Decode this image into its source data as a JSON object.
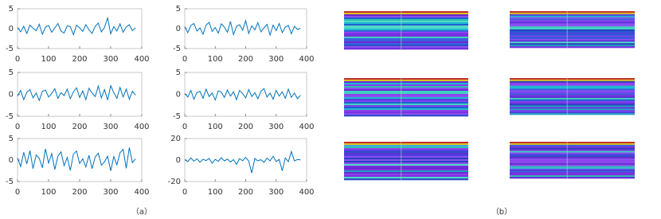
{
  "chart_data": [
    {
      "type": "line",
      "x": [
        0,
        10,
        20,
        30,
        40,
        50,
        60,
        70,
        80,
        90,
        100,
        110,
        120,
        130,
        140,
        150,
        160,
        170,
        180,
        190,
        200,
        210,
        220,
        230,
        240,
        250,
        260,
        270,
        280,
        290,
        300,
        310,
        320,
        330,
        340,
        350,
        360,
        370,
        380
      ],
      "series": [
        {
          "color": "#0072bd",
          "values": [
            0.3,
            -0.8,
            0.6,
            -1.2,
            0.9,
            0.1,
            -0.5,
            1.1,
            -1.4,
            0.4,
            0.8,
            -0.9,
            0.2,
            1.3,
            -0.6,
            -1.1,
            0.7,
            0.5,
            -1.5,
            0.9,
            0.2,
            -0.7,
            1.0,
            -0.3,
            -1.2,
            0.6,
            1.4,
            -0.8,
            0.3,
            2.7,
            -1.3,
            0.5,
            -0.6,
            1.2,
            -0.9,
            0.4,
            1.0,
            -0.5,
            0.2
          ]
        }
      ],
      "xlim": [
        0,
        400
      ],
      "ylim": [
        -5,
        5
      ],
      "xticks": [
        0,
        100,
        200,
        300,
        400
      ],
      "yticks": [
        -5,
        0,
        5
      ]
    },
    {
      "type": "line",
      "x": [
        0,
        10,
        20,
        30,
        40,
        50,
        60,
        70,
        80,
        90,
        100,
        110,
        120,
        130,
        140,
        150,
        160,
        170,
        180,
        190,
        200,
        210,
        220,
        230,
        240,
        250,
        260,
        270,
        280,
        290,
        300,
        310,
        320,
        330,
        340,
        350,
        360,
        370,
        380
      ],
      "series": [
        {
          "color": "#0072bd",
          "values": [
            0.5,
            -1.0,
            0.8,
            1.3,
            -0.6,
            0.2,
            -1.4,
            0.9,
            1.6,
            -0.7,
            0.3,
            -1.1,
            1.2,
            0.4,
            -0.9,
            1.8,
            -1.5,
            0.6,
            1.0,
            -0.4,
            2.0,
            -1.2,
            0.7,
            -0.3,
            1.5,
            -0.8,
            0.2,
            1.1,
            -1.6,
            0.9,
            -0.5,
            1.3,
            -1.0,
            0.4,
            0.8,
            -1.3,
            0.6,
            -0.2,
            0.1
          ]
        }
      ],
      "xlim": [
        0,
        400
      ],
      "ylim": [
        -5,
        5
      ],
      "xticks": [
        0,
        100,
        200,
        300,
        400
      ],
      "yticks": [
        -5,
        0,
        5
      ]
    },
    {
      "type": "line",
      "x": [
        0,
        10,
        20,
        30,
        40,
        50,
        60,
        70,
        80,
        90,
        100,
        110,
        120,
        130,
        140,
        150,
        160,
        170,
        180,
        190,
        200,
        210,
        220,
        230,
        240,
        250,
        260,
        270,
        280,
        290,
        300,
        310,
        320,
        330,
        340,
        350,
        360,
        370,
        380
      ],
      "series": [
        {
          "color": "#0072bd",
          "values": [
            -0.4,
            0.9,
            -1.2,
            0.5,
            1.1,
            -0.8,
            0.3,
            -1.4,
            0.7,
            1.0,
            -0.6,
            0.2,
            1.3,
            -0.9,
            0.4,
            -0.3,
            1.2,
            -1.0,
            0.6,
            1.5,
            -0.7,
            0.8,
            -1.2,
            1.4,
            0.3,
            -0.5,
            1.9,
            -0.8,
            1.1,
            -1.3,
            2.0,
            0.4,
            -0.9,
            1.6,
            -0.6,
            1.2,
            -1.1,
            0.7,
            -0.2
          ]
        }
      ],
      "xlim": [
        0,
        400
      ],
      "ylim": [
        -5,
        5
      ],
      "xticks": [
        0,
        100,
        200,
        300,
        400
      ],
      "yticks": [
        -5,
        0,
        5
      ]
    },
    {
      "type": "line",
      "x": [
        0,
        10,
        20,
        30,
        40,
        50,
        60,
        70,
        80,
        90,
        100,
        110,
        120,
        130,
        140,
        150,
        160,
        170,
        180,
        190,
        200,
        210,
        220,
        230,
        240,
        250,
        260,
        270,
        280,
        290,
        300,
        310,
        320,
        330,
        340,
        350,
        360,
        370,
        380
      ],
      "series": [
        {
          "color": "#0072bd",
          "values": [
            0.2,
            -0.6,
            0.9,
            -1.1,
            0.4,
            0.7,
            -0.9,
            1.2,
            -0.5,
            0.3,
            -1.3,
            0.8,
            0.5,
            -0.7,
            1.0,
            -0.4,
            0.6,
            -1.2,
            0.9,
            0.2,
            -0.8,
            1.1,
            -0.5,
            0.4,
            -1.0,
            0.7,
            1.3,
            -0.6,
            0.3,
            -1.1,
            0.9,
            -0.4,
            0.6,
            -0.9,
            1.2,
            -0.7,
            0.3,
            -1.0,
            -0.2
          ]
        }
      ],
      "xlim": [
        0,
        400
      ],
      "ylim": [
        -5,
        5
      ],
      "xticks": [
        0,
        100,
        200,
        300,
        400
      ],
      "yticks": [
        -5,
        0,
        5
      ]
    },
    {
      "type": "line",
      "x": [
        0,
        10,
        20,
        30,
        40,
        50,
        60,
        70,
        80,
        90,
        100,
        110,
        120,
        130,
        140,
        150,
        160,
        170,
        180,
        190,
        200,
        210,
        220,
        230,
        240,
        250,
        260,
        270,
        280,
        290,
        300,
        310,
        320,
        330,
        340,
        350,
        360,
        370,
        380
      ],
      "series": [
        {
          "color": "#0072bd",
          "values": [
            0.5,
            -1.5,
            1.8,
            -0.9,
            2.2,
            -2.0,
            1.2,
            0.4,
            -1.8,
            2.6,
            -0.7,
            1.5,
            -2.2,
            0.9,
            1.9,
            -1.3,
            0.6,
            -2.4,
            1.4,
            2.1,
            -0.8,
            0.3,
            -1.6,
            1.1,
            -2.0,
            0.7,
            1.6,
            -1.2,
            -0.4,
            0.9,
            -2.5,
            0.8,
            -1.1,
            1.7,
            2.5,
            -1.9,
            2.9,
            -0.6,
            0.3
          ]
        }
      ],
      "xlim": [
        0,
        400
      ],
      "ylim": [
        -5,
        5
      ],
      "xticks": [
        0,
        100,
        200,
        300,
        400
      ],
      "yticks": [
        -5,
        0,
        5
      ]
    },
    {
      "type": "line",
      "x": [
        0,
        10,
        20,
        30,
        40,
        50,
        60,
        70,
        80,
        90,
        100,
        110,
        120,
        130,
        140,
        150,
        160,
        170,
        180,
        190,
        200,
        210,
        220,
        230,
        240,
        250,
        260,
        270,
        280,
        290,
        300,
        310,
        320,
        330,
        340,
        350,
        360,
        370,
        380
      ],
      "series": [
        {
          "color": "#0072bd",
          "values": [
            0.5,
            -1.5,
            2.0,
            -1.0,
            1.2,
            -2.0,
            0.8,
            -0.5,
            1.5,
            -3.0,
            0.7,
            -1.2,
            2.2,
            -0.8,
            1.0,
            -1.8,
            0.5,
            -4.0,
            1.3,
            -0.6,
            2.5,
            -1.0,
            -12.0,
            1.5,
            -0.9,
            0.4,
            -2.2,
            1.8,
            -0.7,
            3.5,
            -1.3,
            0.6,
            -10.0,
            2.0,
            -1.5,
            8.0,
            -0.8,
            0.5,
            0.2
          ]
        }
      ],
      "xlim": [
        0,
        400
      ],
      "ylim": [
        -20,
        20
      ],
      "xticks": [
        0,
        100,
        200,
        300,
        400
      ],
      "yticks": [
        -20,
        0,
        20
      ]
    }
  ],
  "captions": [
    "（a）",
    "（b）"
  ]
}
